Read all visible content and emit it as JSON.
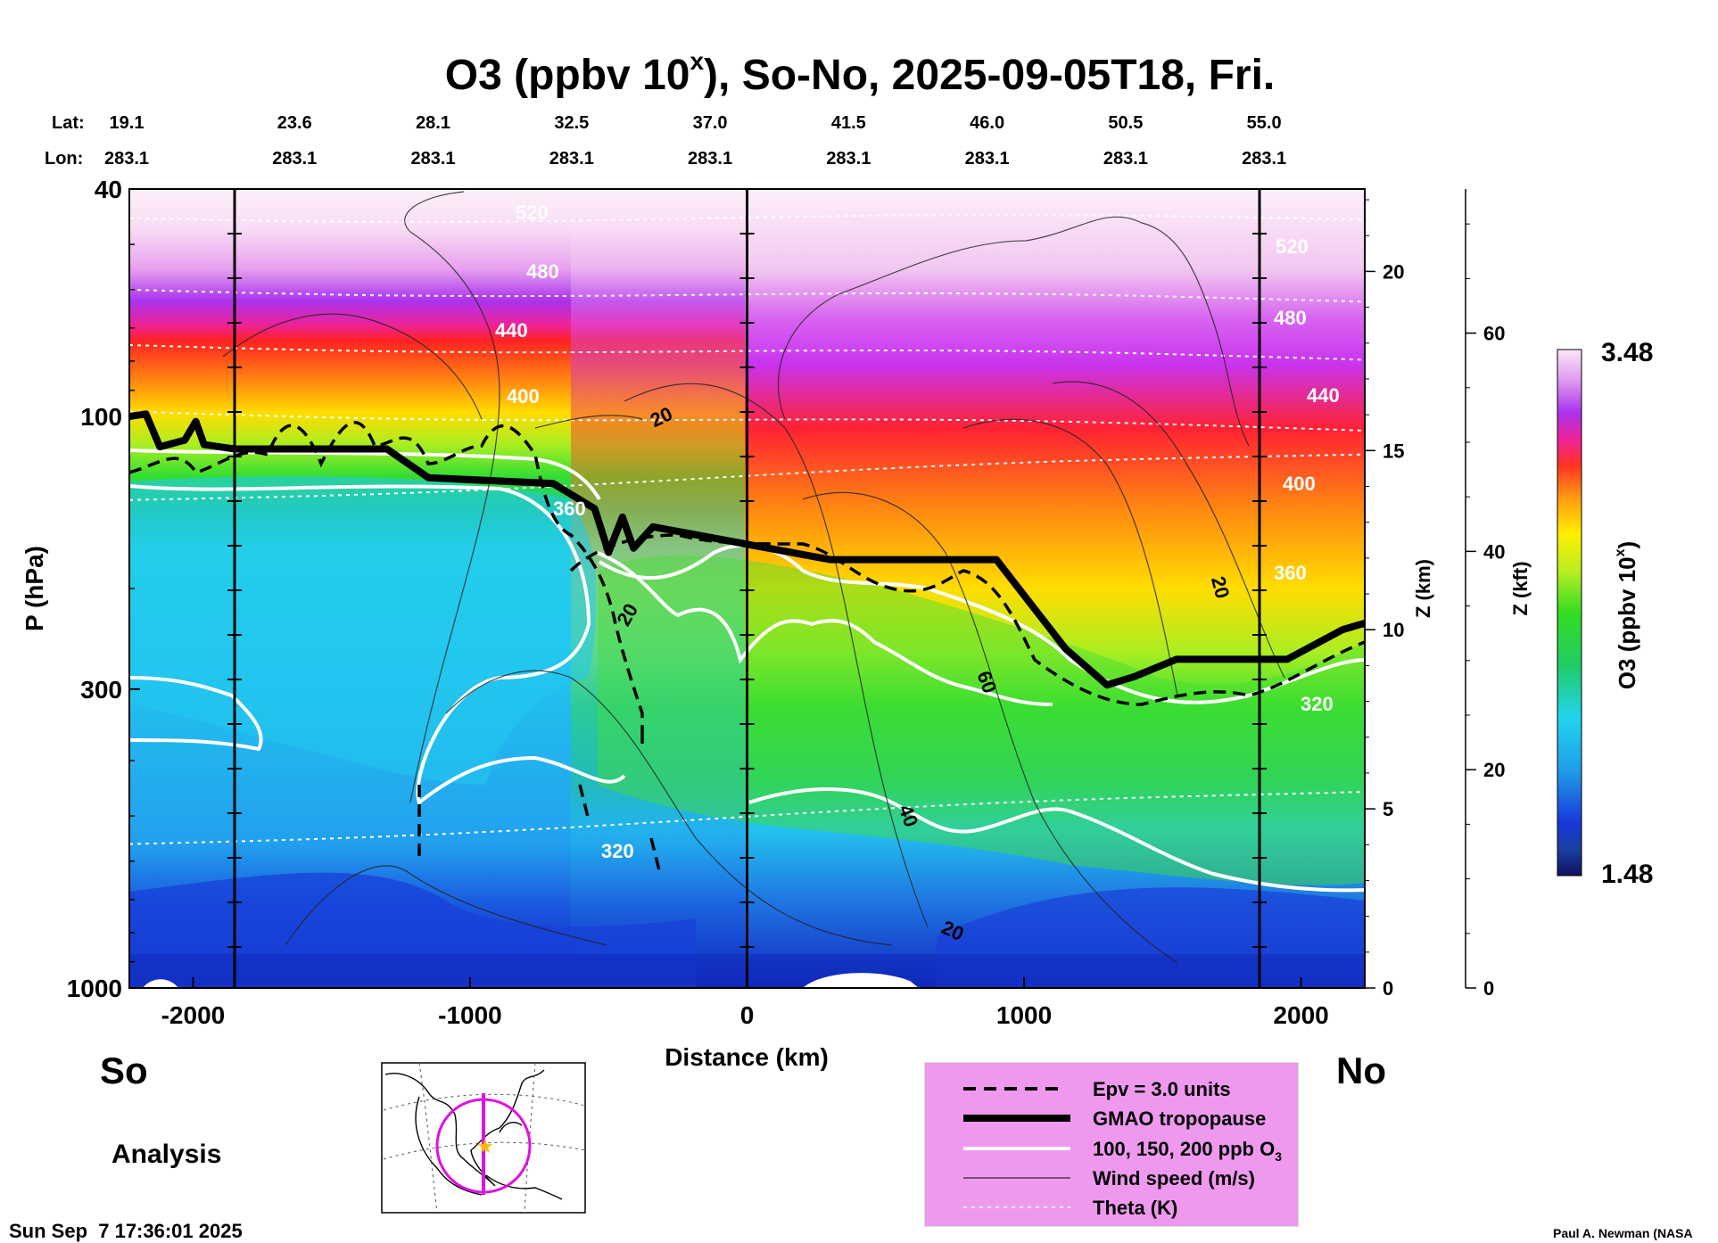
{
  "chart_data": {
    "type": "heatmap",
    "title": "O3 (ppbv 10",
    "title_sup": "x",
    "title_rest": "), So-No, 2025-09-05T18, Fri.",
    "xlabel": "Distance (km)",
    "ylabel": "P (hPa)",
    "ylabel_right1": "Z (km)",
    "ylabel_right2": "Z (kft)",
    "x_range": [
      -2230,
      2230
    ],
    "y_range_hpa": [
      1000,
      40
    ],
    "x_ticks": [
      {
        "value": -2000,
        "label": "-2000"
      },
      {
        "value": -1000,
        "label": "-1000"
      },
      {
        "value": 0,
        "label": "0"
      },
      {
        "value": 1000,
        "label": "1000"
      },
      {
        "value": 2000,
        "label": "2000"
      }
    ],
    "p_ticks": [
      {
        "value": 40,
        "label": "40"
      },
      {
        "value": 100,
        "label": "100"
      },
      {
        "value": 300,
        "label": "300"
      },
      {
        "value": 1000,
        "label": "1000"
      }
    ],
    "z_km_ticks": [
      {
        "value": 0,
        "label": "0"
      },
      {
        "value": 5,
        "label": "5"
      },
      {
        "value": 10,
        "label": "10"
      },
      {
        "value": 15,
        "label": "15"
      },
      {
        "value": 20,
        "label": "20"
      }
    ],
    "z_kft_ticks": [
      {
        "value": 0,
        "label": "0"
      },
      {
        "value": 20,
        "label": "20"
      },
      {
        "value": 40,
        "label": "40"
      },
      {
        "value": 60,
        "label": "60"
      }
    ],
    "lat_label": "Lat:",
    "lon_label": "Lon:",
    "coords": [
      {
        "distance": -2230,
        "lat": "19.1",
        "lon": "283.1"
      },
      {
        "distance": -1730,
        "lat": "23.6",
        "lon": "283.1"
      },
      {
        "distance": -1230,
        "lat": "28.1",
        "lon": "283.1"
      },
      {
        "distance": -730,
        "lat": "32.5",
        "lon": "283.1"
      },
      {
        "distance": -230,
        "lat": "37.0",
        "lon": "283.1"
      },
      {
        "distance": 270,
        "lat": "41.5",
        "lon": "283.1"
      },
      {
        "distance": 770,
        "lat": "46.0",
        "lon": "283.1"
      },
      {
        "distance": 1270,
        "lat": "50.5",
        "lon": "283.1"
      },
      {
        "distance": 1770,
        "lat": "55.0",
        "lon": "283.1"
      }
    ],
    "vertical_markers_km": [
      -1850,
      0,
      1850
    ],
    "colorbar": {
      "label": "O3 (ppbv 10",
      "label_sup": "x",
      "label_end": ")",
      "min": "1.48",
      "max": "3.48"
    },
    "tropopause_hpa": [
      {
        "x": -2230,
        "p": 100
      },
      {
        "x": -2170,
        "p": 99
      },
      {
        "x": -2120,
        "p": 113
      },
      {
        "x": -2030,
        "p": 110
      },
      {
        "x": -1990,
        "p": 102
      },
      {
        "x": -1960,
        "p": 112
      },
      {
        "x": -1850,
        "p": 114
      },
      {
        "x": -1300,
        "p": 114
      },
      {
        "x": -1150,
        "p": 128
      },
      {
        "x": -700,
        "p": 131
      },
      {
        "x": -550,
        "p": 145
      },
      {
        "x": -500,
        "p": 173
      },
      {
        "x": -450,
        "p": 150
      },
      {
        "x": -410,
        "p": 170
      },
      {
        "x": -340,
        "p": 156
      },
      {
        "x": 300,
        "p": 178
      },
      {
        "x": 900,
        "p": 178
      },
      {
        "x": 1150,
        "p": 255
      },
      {
        "x": 1300,
        "p": 295
      },
      {
        "x": 1400,
        "p": 285
      },
      {
        "x": 1550,
        "p": 266
      },
      {
        "x": 1950,
        "p": 266
      },
      {
        "x": 2150,
        "p": 236
      },
      {
        "x": 2230,
        "p": 230
      }
    ],
    "theta_contours": [
      {
        "label": "520",
        "p": 45
      },
      {
        "label": "480",
        "p": 60
      },
      {
        "label": "440",
        "p": 75
      },
      {
        "label": "400",
        "p": 98
      },
      {
        "label": "360",
        "p": 140
      },
      {
        "label": "320",
        "p": 560
      }
    ],
    "wind_speed_labels": [
      "20",
      "20",
      "20",
      "40",
      "60",
      "20"
    ],
    "legend": [
      {
        "style": "dashed",
        "label": "Epv = 3.0 units"
      },
      {
        "style": "thick",
        "label": "GMAO tropopause"
      },
      {
        "style": "white",
        "label": "100, 150, 200 ppb O",
        "sub": "3"
      },
      {
        "style": "thin",
        "label": "Wind speed (m/s)"
      },
      {
        "style": "dotted",
        "label": "Theta (K)"
      }
    ]
  },
  "labels": {
    "south": "So",
    "north": "No",
    "analysis": "Analysis",
    "timestamp": "Sun Sep  7 17:36:01 2025",
    "author": "Paul A. Newman (NASA"
  },
  "colors": {
    "stratosphere_top": "#fbe6f8",
    "magenta": "#cc33ff",
    "red": "#ff2020",
    "orange": "#ff9900",
    "yellow": "#ffee00",
    "green": "#33dd22",
    "cyan": "#22ccee",
    "blue": "#1030d0",
    "legend_bg": "#ee99ee"
  }
}
